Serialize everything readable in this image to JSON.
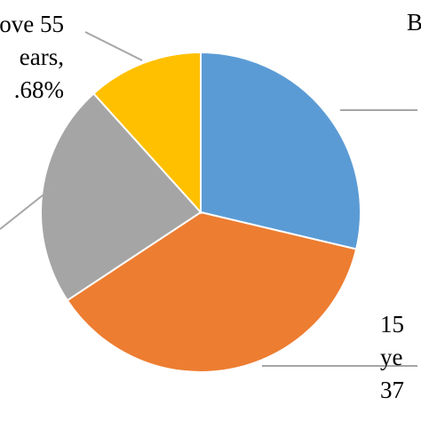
{
  "chart_data": {
    "type": "pie",
    "start_angle_deg": 0,
    "direction": "clockwise",
    "slices": [
      {
        "value": 28.7,
        "color": "#5b9bd5",
        "label_lines": [
          "B"
        ],
        "label_anchor": "start"
      },
      {
        "value": 37.0,
        "color": "#ed7d31",
        "label_lines": [
          "15",
          "ye",
          "37"
        ],
        "label_anchor": "start"
      },
      {
        "value": 22.6,
        "color": "#a5a5a5",
        "label_lines": [],
        "label_anchor": "end"
      },
      {
        "value": 11.68,
        "color": "#ffc000",
        "label_lines": [
          "ove 55",
          "ears,",
          ".68%"
        ],
        "label_anchor": "end"
      }
    ]
  }
}
